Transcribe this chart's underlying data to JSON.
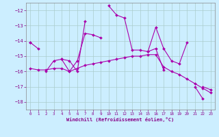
{
  "xlabel": "Windchill (Refroidissement éolien,°C)",
  "background_color": "#cceeff",
  "grid_color": "#aacccc",
  "line_color": "#aa00aa",
  "x": [
    0,
    1,
    2,
    3,
    4,
    5,
    6,
    7,
    8,
    9,
    10,
    11,
    12,
    13,
    14,
    15,
    16,
    17,
    18,
    19,
    20,
    21,
    22,
    23
  ],
  "line1": [
    -14.1,
    -14.5,
    null,
    null,
    -15.2,
    -15.3,
    -16.0,
    -12.7,
    null,
    null,
    -11.7,
    -12.3,
    -12.5,
    -14.6,
    -14.6,
    -14.7,
    -13.1,
    -14.5,
    -15.3,
    -15.5,
    -14.1,
    null,
    -17.0,
    -17.2
  ],
  "line2": [
    -14.1,
    null,
    -16.0,
    -15.3,
    -15.2,
    -16.0,
    -15.3,
    -13.5,
    -13.6,
    -13.8,
    null,
    null,
    null,
    null,
    null,
    -14.7,
    -14.5,
    -15.9,
    null,
    null,
    null,
    -17.0,
    -17.8,
    null
  ],
  "line3": [
    -15.8,
    -15.9,
    -15.9,
    -15.8,
    -15.8,
    -16.0,
    -15.8,
    -15.6,
    -15.5,
    -15.4,
    -15.3,
    -15.2,
    -15.1,
    -15.0,
    -15.0,
    -14.9,
    -14.9,
    -15.7,
    -16.0,
    -16.2,
    -16.5,
    -16.8,
    -17.1,
    -17.4
  ],
  "ylim": [
    -18.5,
    -11.5
  ],
  "xlim": [
    -0.5,
    23.5
  ],
  "yticks": [
    -18,
    -17,
    -16,
    -15,
    -14,
    -13,
    -12
  ],
  "xticks": [
    0,
    1,
    2,
    3,
    4,
    5,
    6,
    7,
    8,
    9,
    10,
    11,
    12,
    13,
    14,
    15,
    16,
    17,
    18,
    19,
    20,
    21,
    22,
    23
  ],
  "figsize": [
    3.2,
    2.0
  ],
  "dpi": 100
}
